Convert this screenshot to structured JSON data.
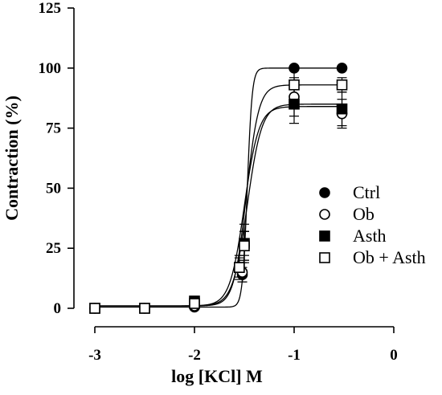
{
  "chart_data": {
    "type": "scatter",
    "xlabel": "log [KCl] M",
    "ylabel": "Contraction (%)",
    "xlim": [
      -3,
      0
    ],
    "ylim": [
      0,
      125
    ],
    "xticks": [
      -3,
      -2,
      -1,
      0
    ],
    "yticks": [
      0,
      25,
      50,
      75,
      100,
      125
    ],
    "x_tick_labels": [
      "-3",
      "-2",
      "-1",
      "0"
    ],
    "y_tick_labels": [
      "0",
      "25",
      "50",
      "75",
      "100",
      "125"
    ],
    "legend_position": "right",
    "grid": false,
    "series": [
      {
        "name": "Ctrl",
        "marker": "filled-circle",
        "points": [
          {
            "x": -3,
            "y": 0,
            "err": 0
          },
          {
            "x": -2.5,
            "y": 0,
            "err": 0
          },
          {
            "x": -2,
            "y": 0.5,
            "err": 1
          },
          {
            "x": -1.52,
            "y": 14,
            "err": 3
          },
          {
            "x": -1.5,
            "y": 27,
            "err": 5
          },
          {
            "x": -1,
            "y": 100,
            "err": 0
          },
          {
            "x": -0.52,
            "y": 100,
            "err": 0
          }
        ],
        "fit": {
          "bottom": 0.5,
          "top": 100,
          "logec50": -1.47,
          "hill": 18
        }
      },
      {
        "name": "Ob",
        "marker": "open-circle",
        "points": [
          {
            "x": -3,
            "y": 0,
            "err": 0
          },
          {
            "x": -2.5,
            "y": 0,
            "err": 0
          },
          {
            "x": -2,
            "y": 1,
            "err": 1
          },
          {
            "x": -1.52,
            "y": 15,
            "err": 4
          },
          {
            "x": -1.5,
            "y": 26,
            "err": 6
          },
          {
            "x": -1,
            "y": 88,
            "err": 8
          },
          {
            "x": -0.52,
            "y": 81,
            "err": 6
          }
        ],
        "fit": {
          "bottom": 1,
          "top": 85,
          "logec50": -1.47,
          "hill": 6
        }
      },
      {
        "name": "Asth",
        "marker": "filled-square",
        "points": [
          {
            "x": -3,
            "y": 0,
            "err": 0
          },
          {
            "x": -2.5,
            "y": 0,
            "err": 0
          },
          {
            "x": -2,
            "y": 3,
            "err": 2
          },
          {
            "x": -1.55,
            "y": 17,
            "err": 4
          },
          {
            "x": -1.5,
            "y": 27,
            "err": 8
          },
          {
            "x": -1,
            "y": 85,
            "err": 8
          },
          {
            "x": -0.52,
            "y": 83,
            "err": 7
          }
        ],
        "fit": {
          "bottom": 1,
          "top": 84,
          "logec50": -1.5,
          "hill": 6
        }
      },
      {
        "name": "Ob + Asth",
        "marker": "open-square",
        "points": [
          {
            "x": -3,
            "y": 0,
            "err": 0
          },
          {
            "x": -2.5,
            "y": 0,
            "err": 0
          },
          {
            "x": -2,
            "y": 2,
            "err": 2
          },
          {
            "x": -1.55,
            "y": 17,
            "err": 5
          },
          {
            "x": -1.5,
            "y": 26,
            "err": 6
          },
          {
            "x": -1,
            "y": 93,
            "err": 6
          },
          {
            "x": -0.52,
            "y": 93,
            "err": 3
          }
        ],
        "fit": {
          "bottom": 1,
          "top": 93,
          "logec50": -1.48,
          "hill": 7
        }
      }
    ]
  }
}
